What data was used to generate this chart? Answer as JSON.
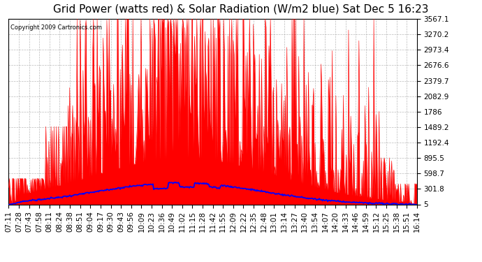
{
  "title": "Grid Power (watts red) & Solar Radiation (W/m2 blue) Sat Dec 5 16:23",
  "copyright": "Copyright 2009 Cartronics.com",
  "yticks": [
    5.0,
    301.8,
    598.7,
    895.5,
    1192.4,
    1489.2,
    1786.0,
    2082.9,
    2379.7,
    2676.6,
    2973.4,
    3270.2,
    3567.1
  ],
  "ymin": 5.0,
  "ymax": 3567.1,
  "x_labels": [
    "07:11",
    "07:28",
    "07:43",
    "07:58",
    "08:11",
    "08:24",
    "08:38",
    "08:51",
    "09:04",
    "09:17",
    "09:30",
    "09:43",
    "09:56",
    "10:09",
    "10:23",
    "10:36",
    "10:49",
    "11:02",
    "11:15",
    "11:28",
    "11:42",
    "11:55",
    "12:09",
    "12:22",
    "12:35",
    "12:48",
    "13:01",
    "13:14",
    "13:27",
    "13:40",
    "13:54",
    "14:07",
    "14:20",
    "14:33",
    "14:46",
    "14:59",
    "15:12",
    "15:25",
    "15:38",
    "15:51",
    "16:14"
  ],
  "background_color": "#ffffff",
  "plot_bg_color": "#ffffff",
  "grid_color": "#aaaaaa",
  "title_color": "#000000",
  "red_color": "#ff0000",
  "blue_color": "#0000ff",
  "title_fontsize": 11,
  "tick_fontsize": 7.5
}
